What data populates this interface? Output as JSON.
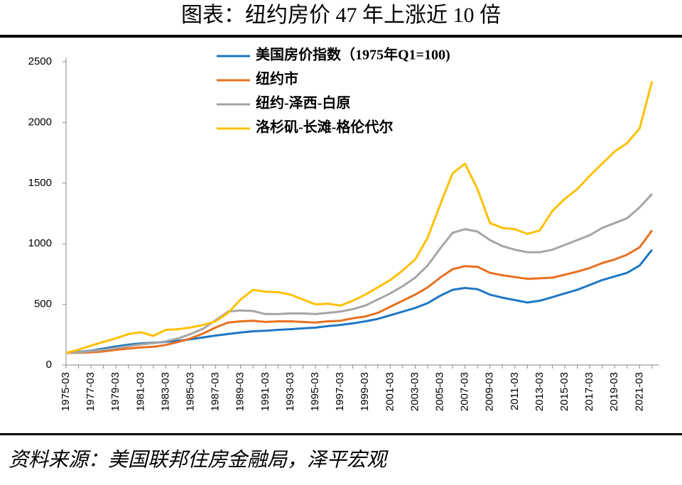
{
  "chart_data": {
    "type": "line",
    "title": "图表：纽约房价 47 年上涨近 10 倍",
    "source": "资料来源：美国联邦住房金融局，泽平宏观",
    "categories": [
      "1975-03",
      null,
      "1977-03",
      null,
      "1979-03",
      null,
      "1981-03",
      null,
      "1983-03",
      null,
      "1985-03",
      null,
      "1987-03",
      null,
      "1989-03",
      null,
      "1991-03",
      null,
      "1993-03",
      null,
      "1995-03",
      null,
      "1997-03",
      null,
      "1999-03",
      null,
      "2001-03",
      null,
      "2003-03",
      null,
      "2005-03",
      null,
      "2007-03",
      null,
      "2009-03",
      null,
      "2011-03",
      null,
      "2013-03",
      null,
      "2015-03",
      null,
      "2017-03",
      null,
      "2019-03",
      null,
      "2021-03",
      null
    ],
    "series": [
      {
        "name": "美国房价指数（1975年Q1=100)",
        "color": "#1f77c4",
        "values": [
          100,
          108,
          118,
          135,
          153,
          168,
          178,
          183,
          190,
          200,
          212,
          228,
          243,
          255,
          268,
          278,
          282,
          290,
          295,
          302,
          308,
          320,
          330,
          343,
          360,
          380,
          410,
          440,
          470,
          510,
          570,
          620,
          635,
          625,
          580,
          555,
          535,
          515,
          530,
          560,
          590,
          620,
          660,
          700,
          730,
          760,
          820,
          950
        ]
      },
      {
        "name": "纽约市",
        "color": "#e8701f",
        "values": [
          100,
          100,
          105,
          112,
          125,
          135,
          145,
          150,
          165,
          190,
          220,
          260,
          310,
          350,
          360,
          365,
          355,
          360,
          360,
          355,
          350,
          360,
          365,
          385,
          400,
          430,
          480,
          530,
          580,
          640,
          720,
          790,
          815,
          810,
          760,
          740,
          725,
          710,
          715,
          720,
          745,
          770,
          800,
          840,
          870,
          910,
          970,
          1110
        ]
      },
      {
        "name": "纽约-泽西-白原",
        "color": "#a5a5a5",
        "values": [
          100,
          105,
          115,
          125,
          140,
          155,
          170,
          180,
          195,
          220,
          255,
          300,
          370,
          440,
          450,
          445,
          420,
          420,
          425,
          425,
          420,
          430,
          440,
          460,
          490,
          540,
          590,
          650,
          720,
          820,
          960,
          1090,
          1120,
          1100,
          1030,
          980,
          950,
          930,
          930,
          950,
          990,
          1030,
          1070,
          1130,
          1170,
          1210,
          1300,
          1410
        ]
      },
      {
        "name": "洛杉矶-长滩-格伦代尔",
        "color": "#ffc000",
        "values": [
          100,
          125,
          160,
          190,
          220,
          255,
          270,
          240,
          290,
          295,
          310,
          330,
          360,
          430,
          540,
          620,
          605,
          600,
          580,
          540,
          500,
          505,
          490,
          530,
          580,
          640,
          700,
          780,
          870,
          1050,
          1320,
          1580,
          1660,
          1450,
          1170,
          1130,
          1120,
          1080,
          1110,
          1270,
          1370,
          1450,
          1560,
          1660,
          1760,
          1830,
          1950,
          2340
        ]
      }
    ],
    "ylim": [
      0,
      2500
    ],
    "yticks": [
      0,
      500,
      1000,
      1500,
      2000,
      2500
    ]
  }
}
